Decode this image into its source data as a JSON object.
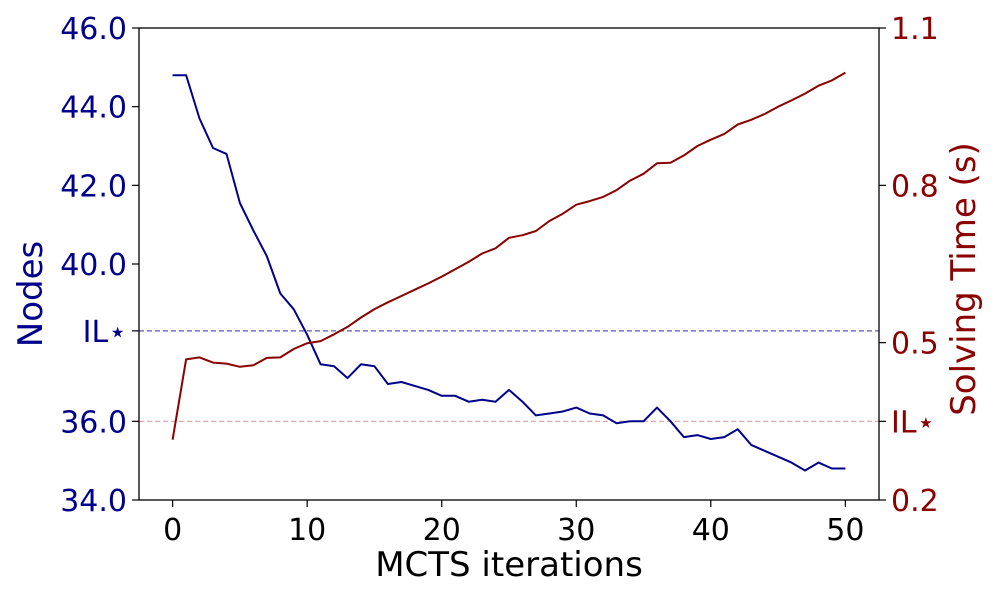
{
  "chart_data": {
    "type": "line",
    "xlabel": "MCTS iterations",
    "y_left_label": "Nodes",
    "y_right_label": "Solving Time (s)",
    "x_ticks": [
      0,
      10,
      20,
      30,
      40,
      50
    ],
    "x_lim": [
      -2.5,
      52.5
    ],
    "y_left_lim": [
      34.0,
      46.0
    ],
    "y_left_ticks": [
      {
        "value": 34.0,
        "label": "34.0"
      },
      {
        "value": 36.0,
        "label": "36.0"
      },
      {
        "value": 38.3,
        "label": "IL⋆"
      },
      {
        "value": 40.0,
        "label": "40.0"
      },
      {
        "value": 42.0,
        "label": "42.0"
      },
      {
        "value": 44.0,
        "label": "44.0"
      },
      {
        "value": 46.0,
        "label": "46.0"
      }
    ],
    "y_right_lim": [
      0.2,
      1.1
    ],
    "y_right_ticks": [
      {
        "value": 0.2,
        "label": "0.2"
      },
      {
        "value": 0.35,
        "label": "IL⋆"
      },
      {
        "value": 0.5,
        "label": "0.5"
      },
      {
        "value": 0.8,
        "label": "0.8"
      },
      {
        "value": 1.1,
        "label": "1.1"
      }
    ],
    "colors": {
      "nodes": "#00008b",
      "time": "#8b0000",
      "il_nodes_line": "#5a5ab4",
      "il_time_line": "#e0a0a0"
    },
    "series": [
      {
        "axis": "left",
        "x": [
          0,
          1,
          2,
          3,
          4,
          5,
          6,
          7,
          8,
          9,
          10,
          11,
          12,
          13,
          14,
          15,
          16,
          17,
          18,
          19,
          20,
          21,
          22,
          23,
          24,
          25,
          26,
          27,
          28,
          29,
          30,
          31,
          32,
          33,
          34,
          35,
          36,
          37,
          38,
          39,
          40,
          41,
          42,
          43,
          44,
          45,
          46,
          47,
          48,
          49,
          50
        ],
        "values": [
          44.8,
          44.8,
          43.7,
          42.95,
          42.8,
          41.55,
          40.85,
          40.2,
          39.25,
          38.85,
          38.2,
          37.45,
          37.4,
          37.1,
          37.45,
          37.4,
          36.95,
          37.0,
          36.9,
          36.8,
          36.65,
          36.65,
          36.5,
          36.55,
          36.5,
          36.8,
          36.5,
          36.15,
          36.2,
          36.25,
          36.35,
          36.2,
          36.15,
          35.95,
          36.0,
          36.0,
          36.35,
          36.0,
          35.6,
          35.65,
          35.55,
          35.6,
          35.8,
          35.4,
          35.25,
          35.1,
          34.95,
          34.75,
          34.95,
          34.8,
          34.8
        ]
      },
      {
        "axis": "right",
        "x": [
          0,
          1,
          2,
          3,
          4,
          5,
          6,
          7,
          8,
          9,
          10,
          11,
          12,
          13,
          14,
          15,
          16,
          17,
          18,
          19,
          20,
          21,
          22,
          23,
          24,
          25,
          26,
          27,
          28,
          29,
          30,
          31,
          32,
          33,
          34,
          35,
          36,
          37,
          38,
          39,
          40,
          41,
          42,
          43,
          44,
          45,
          46,
          47,
          48,
          49,
          50
        ],
        "values": [
          0.315,
          0.468,
          0.472,
          0.462,
          0.46,
          0.454,
          0.457,
          0.471,
          0.472,
          0.488,
          0.499,
          0.503,
          0.516,
          0.53,
          0.548,
          0.564,
          0.577,
          0.589,
          0.601,
          0.613,
          0.626,
          0.64,
          0.654,
          0.67,
          0.68,
          0.7,
          0.705,
          0.713,
          0.732,
          0.746,
          0.763,
          0.77,
          0.778,
          0.791,
          0.809,
          0.822,
          0.842,
          0.843,
          0.857,
          0.875,
          0.887,
          0.898,
          0.916,
          0.925,
          0.936,
          0.95,
          0.962,
          0.975,
          0.99,
          1.0,
          1.015
        ]
      }
    ],
    "reference_lines": [
      {
        "axis": "left",
        "value": 38.3,
        "style": "dashed"
      },
      {
        "axis": "right",
        "value": 0.35,
        "style": "dashed"
      }
    ],
    "grid": false,
    "legend": "none"
  }
}
